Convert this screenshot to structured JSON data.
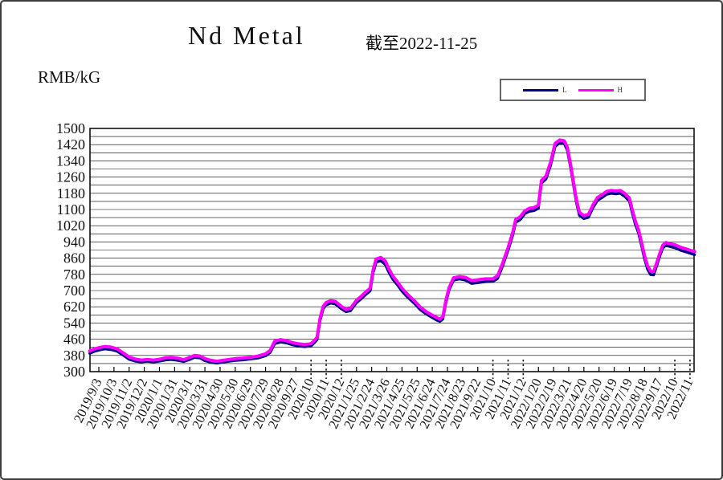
{
  "window": {
    "background": "#ffffff",
    "border_color": "#3c3c3c"
  },
  "header": {
    "title": "Nd Metal",
    "subtitle": "截至2022-11-25",
    "unit_label": "RMB/kG"
  },
  "legend": {
    "items": [
      {
        "label": "L",
        "color": "#00008B"
      },
      {
        "label": "H",
        "color": "#FF00FF"
      }
    ]
  },
  "chart_data": {
    "type": "line",
    "title": "Nd Metal",
    "as_of_date": "2022-11-25",
    "ylabel": "RMB/kG",
    "ylim": [
      300,
      1500
    ],
    "ytick_step": 80,
    "grid_step": 40,
    "grid": "horizontal-only",
    "legend_position": "top-right",
    "x_tick_labels": [
      "2019/9/3",
      "2019/10/3",
      "2019/11/2",
      "2019/12/2",
      "2020/1/1",
      "2020/1/31",
      "2020/3/1",
      "2020/3/31",
      "2020/4/30",
      "2020/5/30",
      "2020/6/29",
      "2020/7/29",
      "2020/8/28",
      "2020/9/27",
      "2020/10",
      "2020/11",
      "2020/12",
      "2021/1/25",
      "2021/2/24",
      "2021/3/26",
      "2021/4/25",
      "2021/5/25",
      "2021/6/24",
      "2021/7/24",
      "2021/8/23",
      "2021/9/22",
      "2021/10",
      "2021/11",
      "2021/12",
      "2022/1/20",
      "2022/2/19",
      "2022/3/21",
      "2022/4/20",
      "2022/5/20",
      "2022/6/19",
      "2022/7/19",
      "2022/8/18",
      "2022/9/17",
      "2022/10",
      "2022/11"
    ],
    "dotted_tick_indices": [
      14,
      15,
      16,
      26,
      27,
      28,
      38,
      39
    ],
    "series": [
      {
        "name": "L",
        "color": "#00008B",
        "stroke_width": 3.4
      },
      {
        "name": "H",
        "color": "#FF00FF",
        "stroke_width": 4
      }
    ],
    "points_format": [
      "tick_index_x",
      "H_value_rmb_per_kg",
      "L_value_rmb_per_kg"
    ],
    "points": [
      [
        -0.6,
        402,
        390
      ],
      [
        -0.3,
        412,
        400
      ],
      [
        0,
        418,
        406
      ],
      [
        0.4,
        424,
        412
      ],
      [
        0.8,
        421,
        409
      ],
      [
        1.2,
        413,
        401
      ],
      [
        1.6,
        393,
        382
      ],
      [
        2.0,
        372,
        361
      ],
      [
        2.4,
        362,
        352
      ],
      [
        2.8,
        357,
        348
      ],
      [
        3.2,
        360,
        351
      ],
      [
        3.6,
        357,
        348
      ],
      [
        4.0,
        361,
        352
      ],
      [
        4.4,
        368,
        358
      ],
      [
        4.8,
        370,
        360
      ],
      [
        5.2,
        366,
        356
      ],
      [
        5.6,
        359,
        350
      ],
      [
        6.0,
        370,
        360
      ],
      [
        6.3,
        380,
        370
      ],
      [
        6.7,
        377,
        367
      ],
      [
        7.0,
        364,
        354
      ],
      [
        7.4,
        356,
        346
      ],
      [
        7.8,
        351,
        342
      ],
      [
        8.2,
        356,
        347
      ],
      [
        8.6,
        360,
        351
      ],
      [
        9.0,
        364,
        355
      ],
      [
        9.5,
        367,
        358
      ],
      [
        10.0,
        371,
        362
      ],
      [
        10.5,
        377,
        367
      ],
      [
        11.0,
        388,
        378
      ],
      [
        11.3,
        404,
        394
      ],
      [
        11.6,
        450,
        438
      ],
      [
        12.0,
        458,
        446
      ],
      [
        12.4,
        452,
        441
      ],
      [
        12.8,
        443,
        432
      ],
      [
        13.2,
        437,
        426
      ],
      [
        13.6,
        434,
        423
      ],
      [
        14.0,
        438,
        427
      ],
      [
        14.2,
        452,
        441
      ],
      [
        14.4,
        470,
        458
      ],
      [
        14.6,
        565,
        553
      ],
      [
        14.8,
        622,
        610
      ],
      [
        15.0,
        641,
        629
      ],
      [
        15.3,
        650,
        638
      ],
      [
        15.6,
        646,
        634
      ],
      [
        16.0,
        622,
        610
      ],
      [
        16.3,
        607,
        596
      ],
      [
        16.6,
        612,
        600
      ],
      [
        17.0,
        652,
        640
      ],
      [
        17.3,
        671,
        659
      ],
      [
        17.6,
        692,
        680
      ],
      [
        17.9,
        712,
        699
      ],
      [
        18.1,
        802,
        788
      ],
      [
        18.3,
        856,
        840
      ],
      [
        18.6,
        863,
        847
      ],
      [
        18.9,
        846,
        829
      ],
      [
        19.1,
        812,
        795
      ],
      [
        19.4,
        771,
        755
      ],
      [
        19.7,
        743,
        728
      ],
      [
        20.0,
        711,
        697
      ],
      [
        20.4,
        679,
        665
      ],
      [
        20.8,
        651,
        638
      ],
      [
        21.2,
        619,
        606
      ],
      [
        21.6,
        596,
        584
      ],
      [
        22.0,
        579,
        567
      ],
      [
        22.3,
        566,
        554
      ],
      [
        22.5,
        559,
        548
      ],
      [
        22.7,
        571,
        560
      ],
      [
        22.9,
        652,
        640
      ],
      [
        23.1,
        713,
        701
      ],
      [
        23.4,
        763,
        751
      ],
      [
        23.8,
        769,
        757
      ],
      [
        24.2,
        765,
        751
      ],
      [
        24.6,
        749,
        735
      ],
      [
        25.0,
        753,
        739
      ],
      [
        25.5,
        758,
        744
      ],
      [
        26.0,
        758,
        745
      ],
      [
        26.3,
        773,
        759
      ],
      [
        26.6,
        826,
        813
      ],
      [
        27.0,
        912,
        899
      ],
      [
        27.3,
        986,
        973
      ],
      [
        27.5,
        1050,
        1036
      ],
      [
        27.8,
        1064,
        1050
      ],
      [
        28.1,
        1093,
        1079
      ],
      [
        28.4,
        1106,
        1091
      ],
      [
        28.7,
        1109,
        1094
      ],
      [
        29.0,
        1121,
        1106
      ],
      [
        29.2,
        1243,
        1229
      ],
      [
        29.5,
        1266,
        1251
      ],
      [
        29.8,
        1332,
        1317
      ],
      [
        30.1,
        1426,
        1411
      ],
      [
        30.4,
        1443,
        1429
      ],
      [
        30.7,
        1439,
        1425
      ],
      [
        30.9,
        1409,
        1394
      ],
      [
        31.1,
        1331,
        1316
      ],
      [
        31.3,
        1241,
        1227
      ],
      [
        31.5,
        1151,
        1137
      ],
      [
        31.7,
        1086,
        1071
      ],
      [
        32.0,
        1069,
        1055
      ],
      [
        32.3,
        1076,
        1061
      ],
      [
        32.6,
        1123,
        1109
      ],
      [
        32.9,
        1159,
        1145
      ],
      [
        33.2,
        1173,
        1159
      ],
      [
        33.5,
        1189,
        1175
      ],
      [
        33.8,
        1194,
        1180
      ],
      [
        34.1,
        1191,
        1177
      ],
      [
        34.4,
        1194,
        1180
      ],
      [
        34.7,
        1179,
        1164
      ],
      [
        35.0,
        1156,
        1141
      ],
      [
        35.2,
        1096,
        1081
      ],
      [
        35.4,
        1041,
        1025
      ],
      [
        35.6,
        1001,
        985
      ],
      [
        35.8,
        939,
        923
      ],
      [
        36.0,
        873,
        857
      ],
      [
        36.2,
        821,
        805
      ],
      [
        36.4,
        796,
        779
      ],
      [
        36.6,
        793,
        777
      ],
      [
        36.8,
        836,
        821
      ],
      [
        37.0,
        883,
        869
      ],
      [
        37.2,
        923,
        909
      ],
      [
        37.4,
        937,
        923
      ],
      [
        37.7,
        931,
        917
      ],
      [
        38.0,
        926,
        911
      ],
      [
        38.4,
        913,
        898
      ],
      [
        38.8,
        904,
        889
      ],
      [
        39.0,
        899,
        884
      ],
      [
        39.3,
        893,
        877
      ]
    ]
  }
}
